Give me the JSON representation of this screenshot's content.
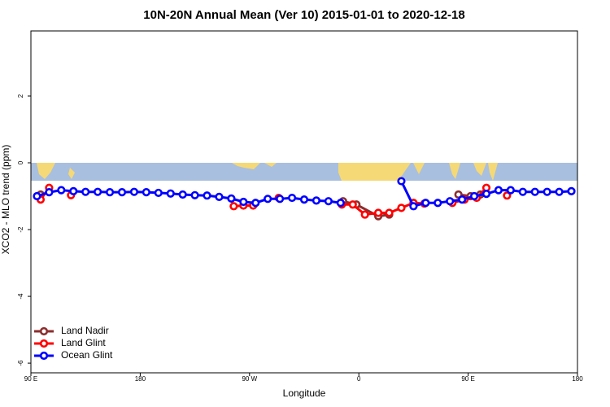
{
  "chart_data": {
    "type": "line",
    "title": "10N-20N Annual Mean (Ver 10)   2015-01-01 to 2020-12-18",
    "x_label": "Longitude",
    "y_label": "XCO2 - MLO trend (ppm)",
    "xlim": [
      90,
      540
    ],
    "ylim": [
      -6.29,
      3.95
    ],
    "xticks": [
      {
        "value": 90,
        "label": "90 E"
      },
      180,
      {
        "value": 270,
        "label": "90 W"
      },
      {
        "value": 360,
        "label": "0"
      },
      {
        "value": 450,
        "label": "90 E"
      },
      {
        "value": 540,
        "label": "180"
      }
    ],
    "yticks": [
      -6,
      -4,
      -2,
      0,
      2
    ],
    "legend": "bottom-left",
    "series": [
      {
        "name": "Land Nadir",
        "color": "#8b2e2e",
        "x": [
          98,
          222,
          347,
          358,
          376,
          385,
          414,
          442,
          452,
          460
        ],
        "values": [
          -0.95,
          null,
          -1.15,
          -1.25,
          -1.6,
          -1.55,
          null,
          -0.95,
          -1.0,
          -0.95
        ]
      },
      {
        "name": "Land Glint",
        "color": "#ff0000",
        "x": [
          98,
          105,
          114,
          123,
          190,
          257,
          265,
          273,
          284,
          294,
          320,
          346,
          355,
          365,
          376,
          385,
          395,
          405,
          414,
          425,
          437,
          447,
          457,
          465,
          473,
          482
        ],
        "values": [
          -1.1,
          -0.75,
          null,
          -0.97,
          null,
          -1.3,
          -1.28,
          -1.28,
          null,
          -1.05,
          null,
          -1.25,
          -1.25,
          -1.55,
          -1.5,
          -1.5,
          -1.35,
          -1.2,
          -1.22,
          null,
          -1.2,
          -1.1,
          -1.05,
          -0.75,
          null,
          -0.98
        ]
      },
      {
        "name": "Ocean Glint",
        "color": "#0000ff",
        "x": [
          95,
          105,
          115,
          125,
          135,
          145,
          155,
          165,
          175,
          185,
          195,
          205,
          215,
          225,
          235,
          245,
          255,
          265,
          275,
          285,
          295,
          305,
          315,
          325,
          335,
          345,
          370,
          395,
          405,
          415,
          425,
          435,
          445,
          455,
          465,
          475,
          485,
          495,
          505,
          515,
          525,
          535
        ],
        "values": [
          -1.0,
          -0.88,
          -0.82,
          -0.85,
          -0.87,
          -0.87,
          -0.88,
          -0.88,
          -0.87,
          -0.88,
          -0.9,
          -0.92,
          -0.95,
          -0.97,
          -0.98,
          -1.02,
          -1.07,
          -1.17,
          -1.2,
          -1.08,
          -1.08,
          -1.05,
          -1.1,
          -1.13,
          -1.15,
          -1.2,
          null,
          -0.55,
          -1.3,
          -1.2,
          -1.2,
          -1.15,
          -1.1,
          -1.0,
          -0.93,
          -0.82,
          -0.82,
          -0.87,
          -0.87,
          -0.87,
          -0.87,
          -0.85
        ]
      }
    ]
  }
}
